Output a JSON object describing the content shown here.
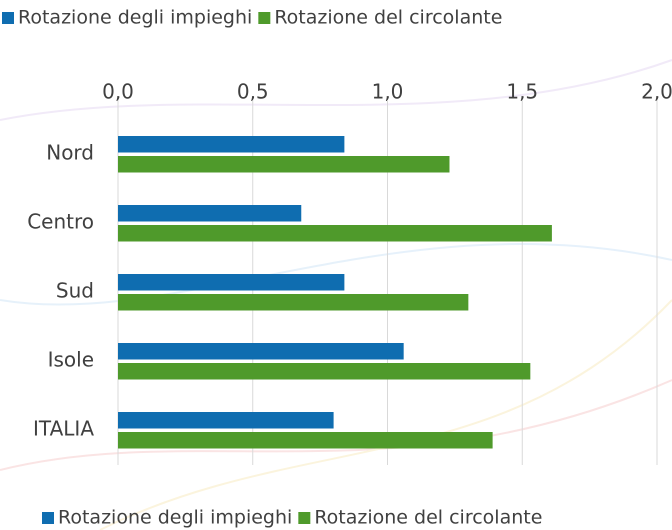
{
  "chart_data": {
    "type": "hbar",
    "categories": [
      "Nord",
      "Centro",
      "Sud",
      "Isole",
      "ITALIA"
    ],
    "series": [
      {
        "name": "Rotazione degli impieghi",
        "color": "#0f6db0",
        "values": [
          0.84,
          0.68,
          0.84,
          1.06,
          0.8
        ]
      },
      {
        "name": "Rotazione del circolante",
        "color": "#4f9a2b",
        "values": [
          1.23,
          1.61,
          1.3,
          1.53,
          1.39
        ]
      }
    ],
    "xlim": [
      0,
      2
    ],
    "xticks": [
      {
        "value": 0,
        "label": "0,0"
      },
      {
        "value": 0.5,
        "label": "0,5"
      },
      {
        "value": 1,
        "label": "1,0"
      },
      {
        "value": 1.5,
        "label": "1,5"
      },
      {
        "value": 2,
        "label": "2,0"
      }
    ],
    "grid": true
  }
}
